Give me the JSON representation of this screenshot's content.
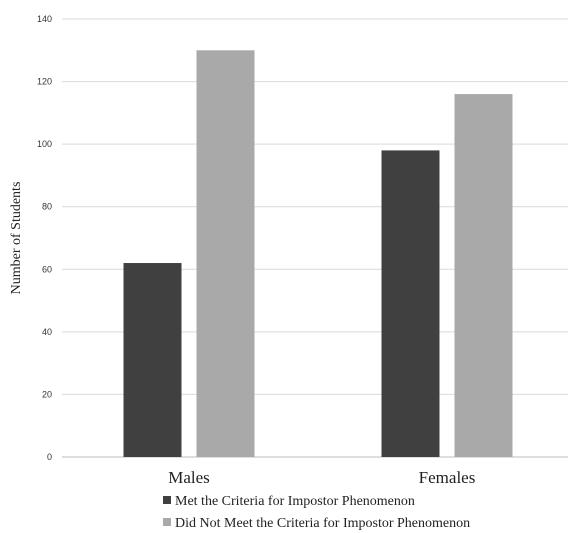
{
  "chart_data": {
    "type": "bar",
    "categories": [
      "Males",
      "Females"
    ],
    "series": [
      {
        "name": "Met the Criteria for Impostor Phenomenon",
        "values": [
          62,
          98
        ],
        "color": "#404040"
      },
      {
        "name": "Did Not Meet the Criteria for Impostor Phenomenon",
        "values": [
          130,
          116
        ],
        "color": "#a9a9a9"
      }
    ],
    "ylabel": "Number of Students",
    "xlabel": "",
    "ylim": [
      0,
      140
    ],
    "yticks": [
      0,
      20,
      40,
      60,
      80,
      100,
      120,
      140
    ],
    "grid": true,
    "legend_position": "bottom"
  }
}
